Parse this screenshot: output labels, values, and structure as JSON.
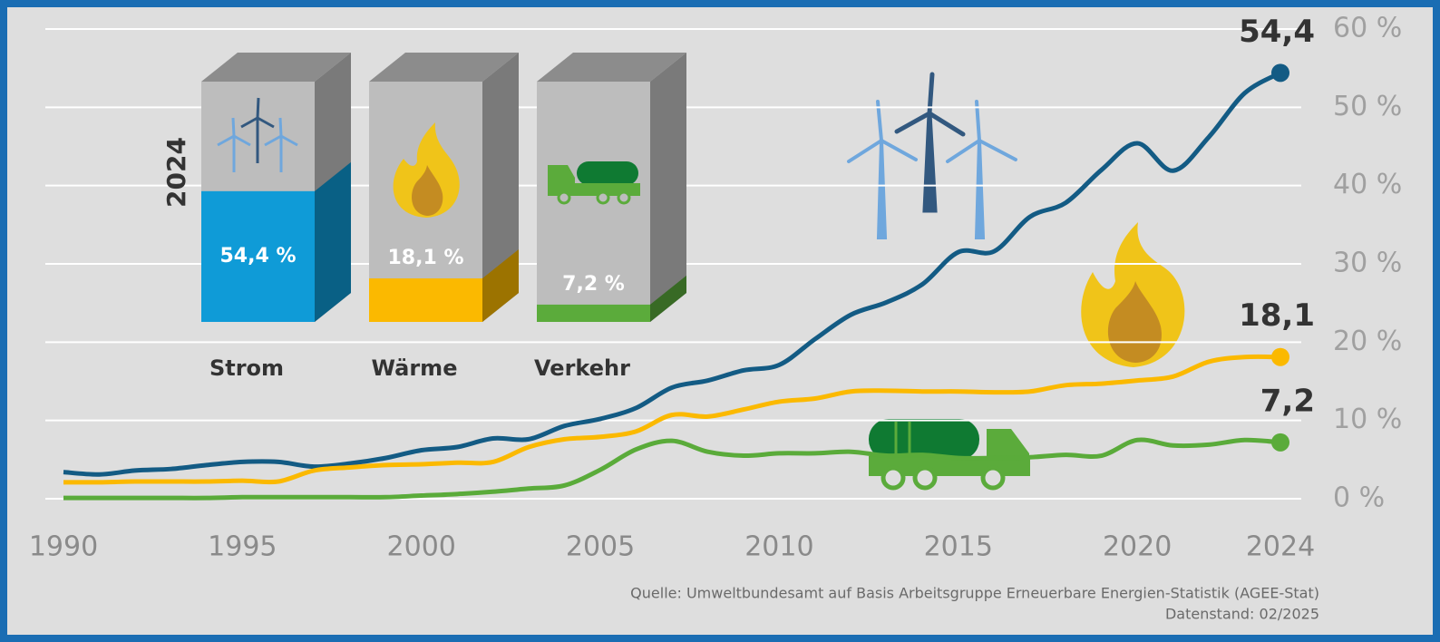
{
  "chart_data": [
    {
      "type": "line",
      "x": [
        1990,
        1991,
        1992,
        1993,
        1994,
        1995,
        1996,
        1997,
        1998,
        1999,
        2000,
        2001,
        2002,
        2003,
        2004,
        2005,
        2006,
        2007,
        2008,
        2009,
        2010,
        2011,
        2012,
        2013,
        2014,
        2015,
        2016,
        2017,
        2018,
        2019,
        2020,
        2021,
        2022,
        2023,
        2024
      ],
      "xlim": [
        1990,
        2024
      ],
      "xticks": [
        1990,
        1995,
        2000,
        2005,
        2010,
        2015,
        2020,
        2024
      ],
      "ylim": [
        0,
        60
      ],
      "yticks": [
        {
          "value": 0,
          "label": "0 %"
        },
        {
          "value": 10,
          "label": "10 %"
        },
        {
          "value": 20,
          "label": "20 %"
        },
        {
          "value": 30,
          "label": "30 %"
        },
        {
          "value": 40,
          "label": "40 %"
        },
        {
          "value": 50,
          "label": "50 %"
        },
        {
          "value": 60,
          "label": "60 %"
        }
      ],
      "grid": true,
      "series": [
        {
          "color": "#135b84",
          "values": [
            3.4,
            3.1,
            3.6,
            3.8,
            4.3,
            4.7,
            4.7,
            4.1,
            4.5,
            5.2,
            6.2,
            6.6,
            7.7,
            7.6,
            9.3,
            10.2,
            11.6,
            14.2,
            15.1,
            16.4,
            17.1,
            20.4,
            23.5,
            25.1,
            27.4,
            31.5,
            31.6,
            36.0,
            37.8,
            42.0,
            45.4,
            41.9,
            46.2,
            51.8,
            54.4
          ],
          "value_labels": [
            null,
            null,
            null,
            null,
            null,
            null,
            null,
            null,
            null,
            null,
            null,
            null,
            null,
            null,
            null,
            null,
            null,
            null,
            null,
            null,
            null,
            null,
            null,
            null,
            null,
            null,
            null,
            null,
            null,
            null,
            null,
            null,
            null,
            null,
            "54,4"
          ]
        },
        {
          "color": "#fbb900",
          "values": [
            2.1,
            2.1,
            2.2,
            2.2,
            2.2,
            2.3,
            2.2,
            3.6,
            4.0,
            4.3,
            4.4,
            4.6,
            4.7,
            6.6,
            7.6,
            7.9,
            8.6,
            10.7,
            10.5,
            11.4,
            12.4,
            12.8,
            13.7,
            13.8,
            13.7,
            13.7,
            13.6,
            13.7,
            14.5,
            14.7,
            15.1,
            15.6,
            17.5,
            18.1,
            18.1
          ],
          "value_labels": [
            null,
            null,
            null,
            null,
            null,
            null,
            null,
            null,
            null,
            null,
            null,
            null,
            null,
            null,
            null,
            null,
            null,
            null,
            null,
            null,
            null,
            null,
            null,
            null,
            null,
            null,
            null,
            null,
            null,
            null,
            null,
            null,
            null,
            null,
            "18,1"
          ]
        },
        {
          "color": "#5aab3a",
          "values": [
            0.1,
            0.1,
            0.1,
            0.1,
            0.1,
            0.2,
            0.2,
            0.2,
            0.2,
            0.2,
            0.4,
            0.6,
            0.9,
            1.3,
            1.7,
            3.7,
            6.3,
            7.4,
            6.0,
            5.5,
            5.8,
            5.8,
            6.0,
            5.5,
            5.6,
            5.2,
            5.2,
            5.3,
            5.6,
            5.5,
            7.5,
            6.8,
            6.9,
            7.5,
            7.2
          ],
          "value_labels": [
            null,
            null,
            null,
            null,
            null,
            null,
            null,
            null,
            null,
            null,
            null,
            null,
            null,
            null,
            null,
            null,
            null,
            null,
            null,
            null,
            null,
            null,
            null,
            null,
            null,
            null,
            null,
            null,
            null,
            null,
            null,
            null,
            null,
            null,
            "7,2"
          ]
        }
      ],
      "notes": [
        "Quelle: Umweltbundesamt auf Basis Arbeitsgruppe Erneuerbare Energien-Statistik (AGEE-Stat)",
        "Datenstand: 02/2025"
      ]
    },
    {
      "type": "box3d",
      "title": "2024",
      "categories": [
        "Strom",
        "Wärme",
        "Verkehr"
      ],
      "values": [
        54.4,
        18.1,
        7.2
      ],
      "value_labels": [
        "54,4 %",
        "18,1 %",
        "7,2 %"
      ],
      "colors": [
        "#0f9bd7",
        "#fbb900",
        "#5bab3b"
      ],
      "ylim": [
        0,
        100
      ]
    }
  ]
}
